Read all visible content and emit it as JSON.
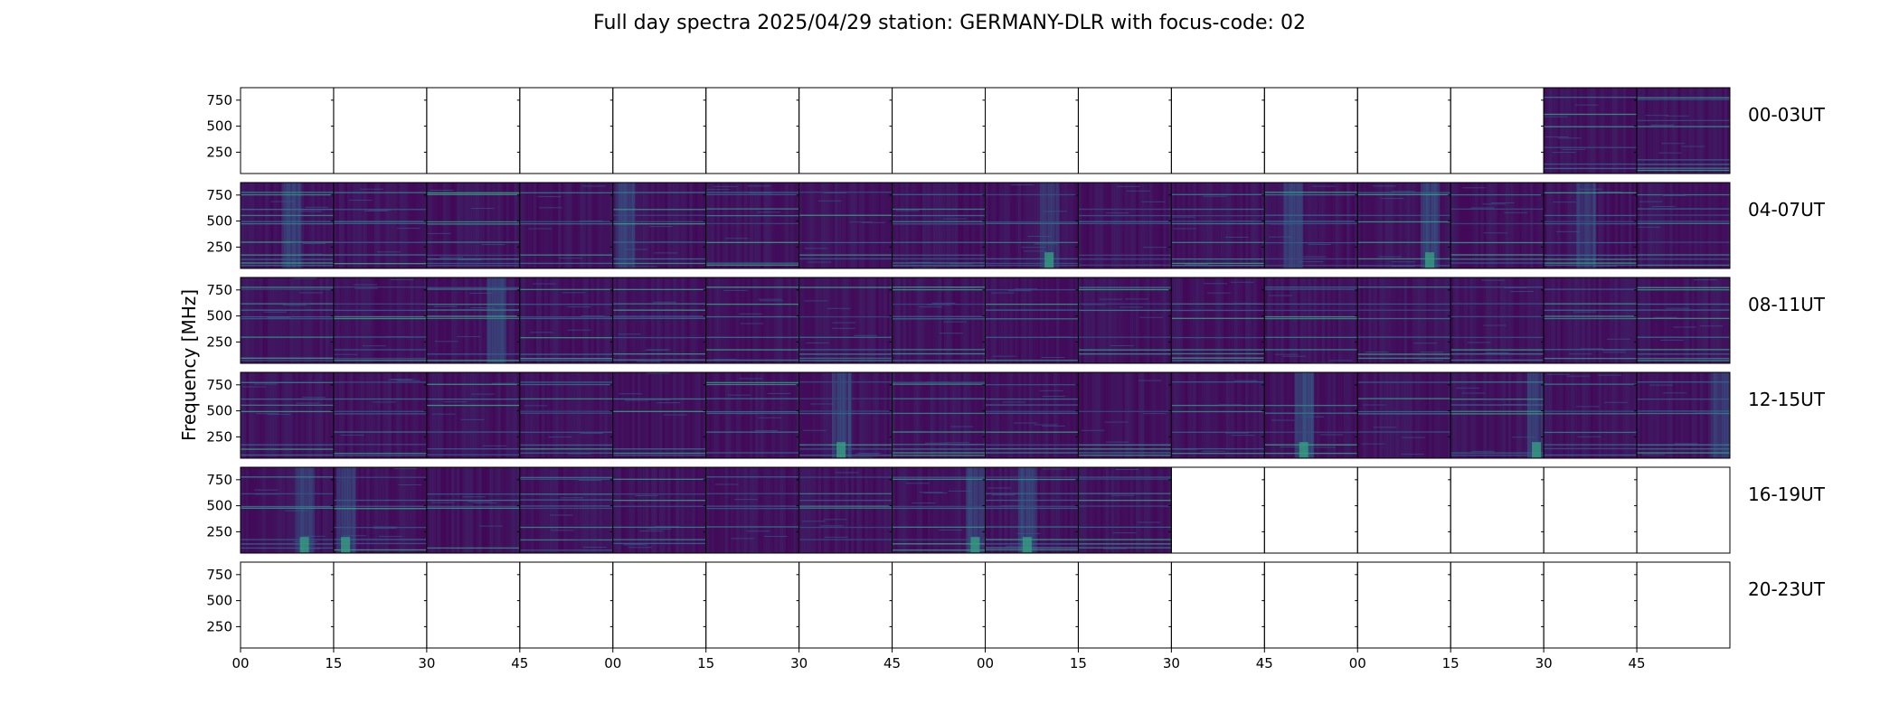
{
  "title": "Full day spectra 2025/04/29 station: GERMANY-DLR with focus-code: 02",
  "chart_data": {
    "type": "heatmap",
    "title": "Full day spectra 2025/04/29 station: GERMANY-DLR with focus-code: 02",
    "ylabel": "Frequency [MHz]",
    "xlabel": "",
    "yticks": [
      250,
      500,
      750
    ],
    "ylim": [
      45,
      870
    ],
    "xtick_labels": [
      "00",
      "15",
      "30",
      "45",
      "00",
      "15",
      "30",
      "45",
      "00",
      "15",
      "30",
      "45",
      "00",
      "15",
      "30",
      "45"
    ],
    "colormap": "viridis",
    "colors": {
      "low": "#440154",
      "mid": "#31688e",
      "high": "#35b779",
      "peak": "#fde725"
    },
    "rows": [
      {
        "label": "00-03UT",
        "panels": [
          0,
          0,
          0,
          0,
          0,
          0,
          0,
          0,
          0,
          0,
          0,
          0,
          0,
          0,
          1,
          1
        ]
      },
      {
        "label": "04-07UT",
        "panels": [
          1,
          1,
          1,
          1,
          1,
          1,
          1,
          1,
          1,
          1,
          1,
          1,
          1,
          1,
          1,
          1
        ]
      },
      {
        "label": "08-11UT",
        "panels": [
          1,
          1,
          1,
          1,
          1,
          1,
          1,
          1,
          1,
          1,
          1,
          1,
          1,
          1,
          1,
          1
        ]
      },
      {
        "label": "12-15UT",
        "panels": [
          1,
          1,
          1,
          1,
          1,
          1,
          1,
          1,
          1,
          1,
          1,
          1,
          1,
          1,
          1,
          1
        ]
      },
      {
        "label": "16-19UT",
        "panels": [
          1,
          1,
          1,
          1,
          1,
          1,
          1,
          1,
          1,
          1,
          0,
          0,
          0,
          0,
          0,
          0
        ]
      },
      {
        "label": "20-23UT",
        "panels": [
          0,
          0,
          0,
          0,
          0,
          0,
          0,
          0,
          0,
          0,
          0,
          0,
          0,
          0,
          0,
          0
        ]
      }
    ]
  }
}
